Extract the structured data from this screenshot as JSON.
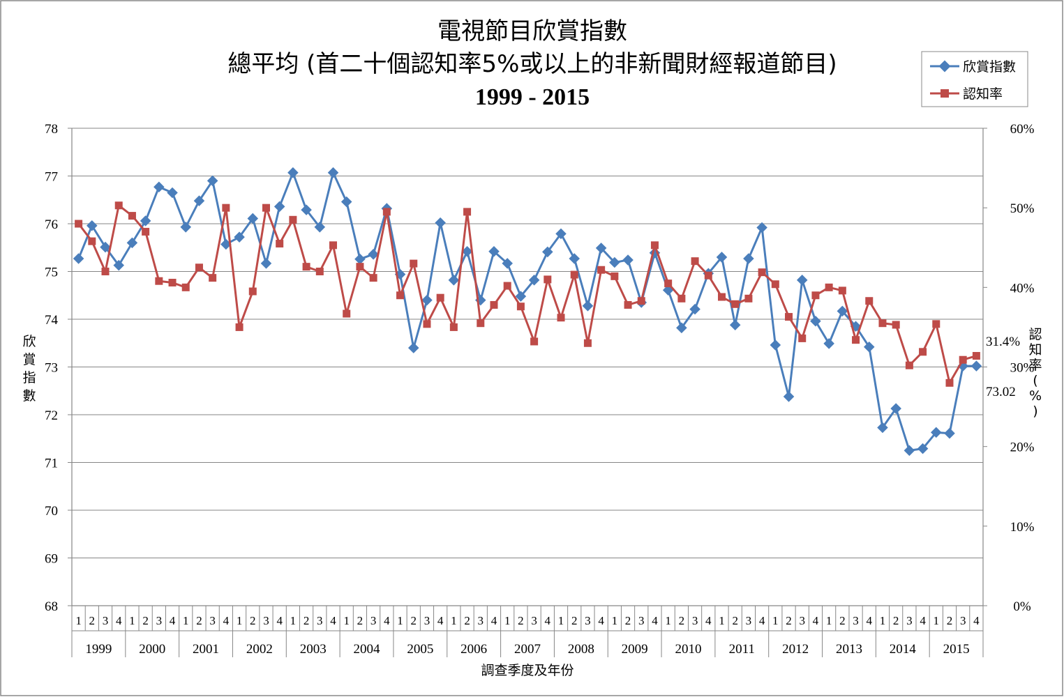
{
  "chart_data": {
    "type": "line",
    "title": "電視節目欣賞指數",
    "subtitle": "總平均 (首二十個認知率5%或以上的非新聞財經報道節目)",
    "period": "1999 - 2015",
    "xlabel": "調查季度及年份",
    "ylabel": "欣賞指數",
    "y2label": "認知率(%)",
    "ylim": [
      68,
      78
    ],
    "y2lim": [
      0,
      60
    ],
    "yticks": [
      "68",
      "69",
      "70",
      "71",
      "72",
      "73",
      "74",
      "75",
      "76",
      "77",
      "78"
    ],
    "y2ticks": [
      "0%",
      "10%",
      "20%",
      "30%",
      "40%",
      "50%",
      "60%"
    ],
    "quarters": [
      "1",
      "2",
      "3",
      "4"
    ],
    "years": [
      "1999",
      "2000",
      "2001",
      "2002",
      "2003",
      "2004",
      "2005",
      "2006",
      "2007",
      "2008",
      "2009",
      "2010",
      "2011",
      "2012",
      "2013",
      "2014",
      "2015"
    ],
    "grid": true,
    "legend_position": "top-right",
    "series": [
      {
        "name": "欣賞指數",
        "axis": "left",
        "color": "#4a7ebb",
        "marker": "diamond",
        "values": [
          75.27,
          75.96,
          75.51,
          75.13,
          75.6,
          76.06,
          76.77,
          76.65,
          75.93,
          76.48,
          76.9,
          75.57,
          75.72,
          76.11,
          75.17,
          76.36,
          77.07,
          76.29,
          75.93,
          77.07,
          76.46,
          75.26,
          75.36,
          76.32,
          74.94,
          73.4,
          74.4,
          76.02,
          74.82,
          75.42,
          74.4,
          75.42,
          75.17,
          74.48,
          74.82,
          75.41,
          75.79,
          75.27,
          74.28,
          75.49,
          75.19,
          75.24,
          74.35,
          75.39,
          74.61,
          73.82,
          74.21,
          74.96,
          75.3,
          73.88,
          75.27,
          75.92,
          73.46,
          72.38,
          74.82,
          73.96,
          73.49,
          74.17,
          73.85,
          73.42,
          71.73,
          72.13,
          71.25,
          71.29,
          71.63,
          71.61,
          73.02,
          73.02
        ]
      },
      {
        "name": "認知率",
        "axis": "right",
        "color": "#be4b48",
        "marker": "square",
        "values": [
          48.0,
          45.8,
          42.0,
          50.3,
          49.0,
          47.0,
          40.8,
          40.6,
          40.0,
          42.5,
          41.2,
          50.0,
          35.0,
          39.5,
          50.0,
          45.5,
          48.5,
          42.6,
          42.0,
          45.3,
          36.7,
          42.6,
          41.2,
          49.5,
          39.0,
          43.0,
          35.4,
          38.7,
          35.0,
          49.5,
          35.5,
          37.8,
          40.2,
          37.6,
          33.2,
          41.0,
          36.2,
          41.6,
          33.0,
          42.2,
          41.4,
          37.8,
          38.3,
          45.3,
          40.5,
          38.6,
          43.3,
          41.5,
          38.8,
          37.9,
          38.6,
          41.9,
          40.4,
          36.3,
          33.6,
          39.0,
          40.0,
          39.6,
          33.4,
          38.3,
          35.5,
          35.3,
          30.2,
          31.9,
          35.4,
          28.0,
          30.9,
          31.4
        ]
      }
    ],
    "annotations": {
      "last_appreciation": "73.02",
      "last_awareness": "31.4%"
    }
  }
}
